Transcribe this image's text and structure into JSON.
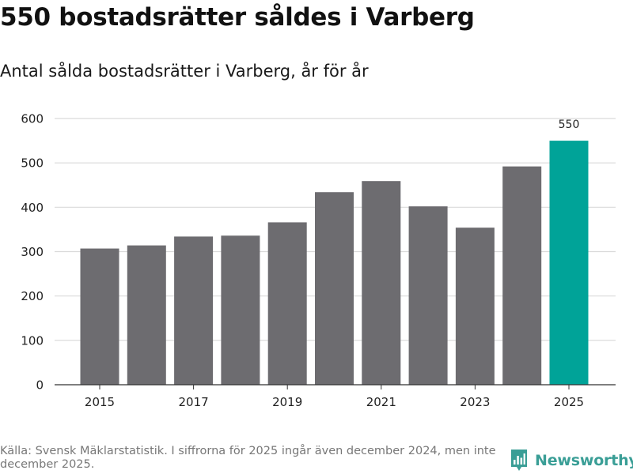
{
  "title": "550 bostadsrätter såldes i Varberg",
  "subtitle": "Antal sålda bostadsrätter i Varberg, år för år",
  "source": "Källa: Svensk Mäklarstatistik. I siffrorna för 2025 ingår även december 2024, men inte december 2025.",
  "brand": "Newsworthy",
  "colors": {
    "bar": "#6d6c70",
    "highlight": "#00a398",
    "grid": "#d9d9d9",
    "axis": "#333333",
    "brand": "#3a9e96"
  },
  "chart_data": {
    "type": "bar",
    "categories": [
      "2015",
      "2016",
      "2017",
      "2018",
      "2019",
      "2020",
      "2021",
      "2022",
      "2023",
      "2024",
      "2025"
    ],
    "values": [
      307,
      314,
      334,
      336,
      366,
      434,
      459,
      402,
      354,
      492,
      550
    ],
    "xticks": [
      "2015",
      "2017",
      "2019",
      "2021",
      "2023",
      "2025"
    ],
    "yticks": [
      0,
      100,
      200,
      300,
      400,
      500,
      600
    ],
    "ylim": [
      0,
      600
    ],
    "highlight_category": "2025",
    "annotation": {
      "category": "2025",
      "label": "550"
    },
    "xlabel": "",
    "ylabel": "",
    "grid": true
  }
}
